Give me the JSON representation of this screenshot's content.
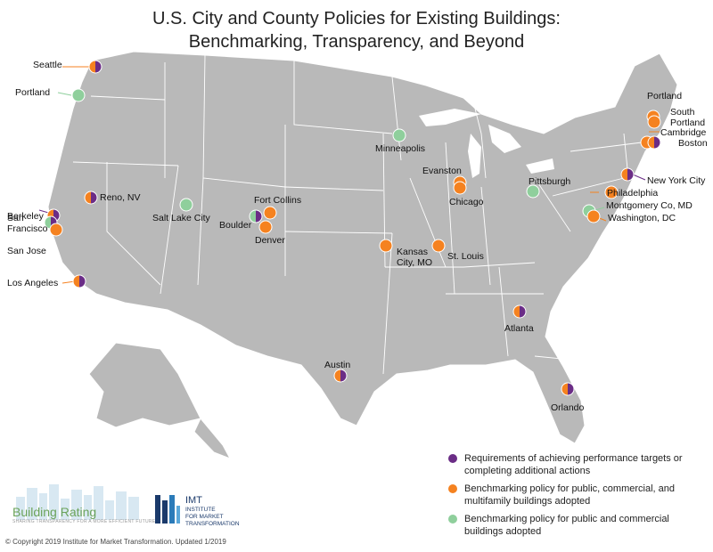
{
  "title": {
    "line1": "U.S. City and County Policies for Existing Buildings:",
    "line2": "Benchmarking, Transparency, and Beyond"
  },
  "colors": {
    "purple": "#6b2d86",
    "orange": "#f58220",
    "green": "#8fcf9c",
    "land": "#b9b9b9",
    "border": "#ffffff"
  },
  "cities": [
    {
      "label": "Seattle",
      "types": [
        "orange",
        "purple"
      ]
    },
    {
      "label": "Portland",
      "types": [
        "green"
      ]
    },
    {
      "label": "Berkeley",
      "types": [
        "orange",
        "purple"
      ]
    },
    {
      "label": "San Francisco",
      "types": [
        "green",
        "purple"
      ]
    },
    {
      "label": "San Jose",
      "types": [
        "orange"
      ]
    },
    {
      "label": "Los Angeles",
      "types": [
        "orange",
        "purple"
      ]
    },
    {
      "label": "Reno, NV",
      "types": [
        "orange",
        "purple"
      ]
    },
    {
      "label": "Salt Lake City",
      "types": [
        "green"
      ]
    },
    {
      "label": "Boulder",
      "types": [
        "green",
        "purple"
      ]
    },
    {
      "label": "Fort Collins",
      "types": [
        "orange"
      ]
    },
    {
      "label": "Denver",
      "types": [
        "orange"
      ]
    },
    {
      "label": "Minneapolis",
      "types": [
        "green"
      ]
    },
    {
      "label": "Evanston",
      "types": [
        "orange"
      ]
    },
    {
      "label": "Chicago",
      "types": [
        "orange"
      ]
    },
    {
      "label": "Kansas City, MO",
      "types": [
        "orange"
      ]
    },
    {
      "label": "St. Louis",
      "types": [
        "orange"
      ]
    },
    {
      "label": "Austin",
      "types": [
        "orange",
        "purple"
      ]
    },
    {
      "label": "Atlanta",
      "types": [
        "orange",
        "purple"
      ]
    },
    {
      "label": "Orlando",
      "types": [
        "orange",
        "purple"
      ]
    },
    {
      "label": "Pittsburgh",
      "types": [
        "green"
      ]
    },
    {
      "label": "Portland",
      "types": [
        "orange"
      ]
    },
    {
      "label": "South Portland",
      "types": [
        "orange"
      ]
    },
    {
      "label": "Cambridge",
      "types": [
        "orange"
      ]
    },
    {
      "label": "Boston",
      "types": [
        "orange",
        "purple"
      ]
    },
    {
      "label": "New York City",
      "types": [
        "orange",
        "purple"
      ]
    },
    {
      "label": "Philadelphia",
      "types": [
        "orange"
      ]
    },
    {
      "label": "Montgomery Co, MD",
      "types": [
        "green"
      ]
    },
    {
      "label": "Washington, DC",
      "types": [
        "orange"
      ]
    }
  ],
  "legend": [
    {
      "color": "#6b2d86",
      "text": "Requirements of achieving performance targets or completing additional actions"
    },
    {
      "color": "#f58220",
      "text": "Benchmarking policy for public, commercial, and multifamily buildings adopted"
    },
    {
      "color": "#8fcf9c",
      "text": "Benchmarking policy for public and commercial buildings adopted"
    }
  ],
  "logos": {
    "building_rating": "Building Rating",
    "building_rating_tagline": "SHARING TRANSPARENCY FOR A MORE EFFICIENT FUTURE",
    "imt": "IMT",
    "imt_line1": "INSTITUTE",
    "imt_line2": "FOR MARKET",
    "imt_line3": "TRANSFORMATION"
  },
  "copyright": "© Copyright 2019 Institute for Market Transformation. Updated 1/2019"
}
